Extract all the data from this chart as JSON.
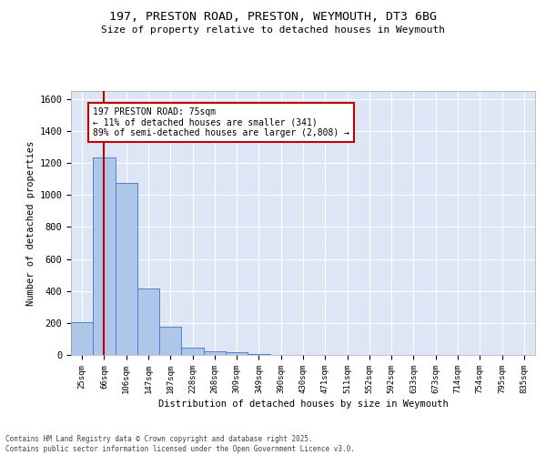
{
  "title_line1": "197, PRESTON ROAD, PRESTON, WEYMOUTH, DT3 6BG",
  "title_line2": "Size of property relative to detached houses in Weymouth",
  "xlabel": "Distribution of detached houses by size in Weymouth",
  "ylabel": "Number of detached properties",
  "categories": [
    "25sqm",
    "66sqm",
    "106sqm",
    "147sqm",
    "187sqm",
    "228sqm",
    "268sqm",
    "309sqm",
    "349sqm",
    "390sqm",
    "430sqm",
    "471sqm",
    "511sqm",
    "552sqm",
    "592sqm",
    "633sqm",
    "673sqm",
    "714sqm",
    "754sqm",
    "795sqm",
    "835sqm"
  ],
  "values": [
    205,
    1235,
    1075,
    415,
    175,
    45,
    25,
    15,
    8,
    0,
    0,
    0,
    0,
    0,
    0,
    0,
    0,
    0,
    0,
    0,
    0
  ],
  "bar_color": "#aec6e8",
  "bar_edge_color": "#4472c4",
  "vline_x": 1,
  "vline_color": "#c00000",
  "ylim": [
    0,
    1650
  ],
  "yticks": [
    0,
    200,
    400,
    600,
    800,
    1000,
    1200,
    1400,
    1600
  ],
  "annotation_text": "197 PRESTON ROAD: 75sqm\n← 11% of detached houses are smaller (341)\n89% of semi-detached houses are larger (2,808) →",
  "bg_color": "#dce6f5",
  "grid_color": "#ffffff",
  "footer_line1": "Contains HM Land Registry data © Crown copyright and database right 2025.",
  "footer_line2": "Contains public sector information licensed under the Open Government Licence v3.0."
}
